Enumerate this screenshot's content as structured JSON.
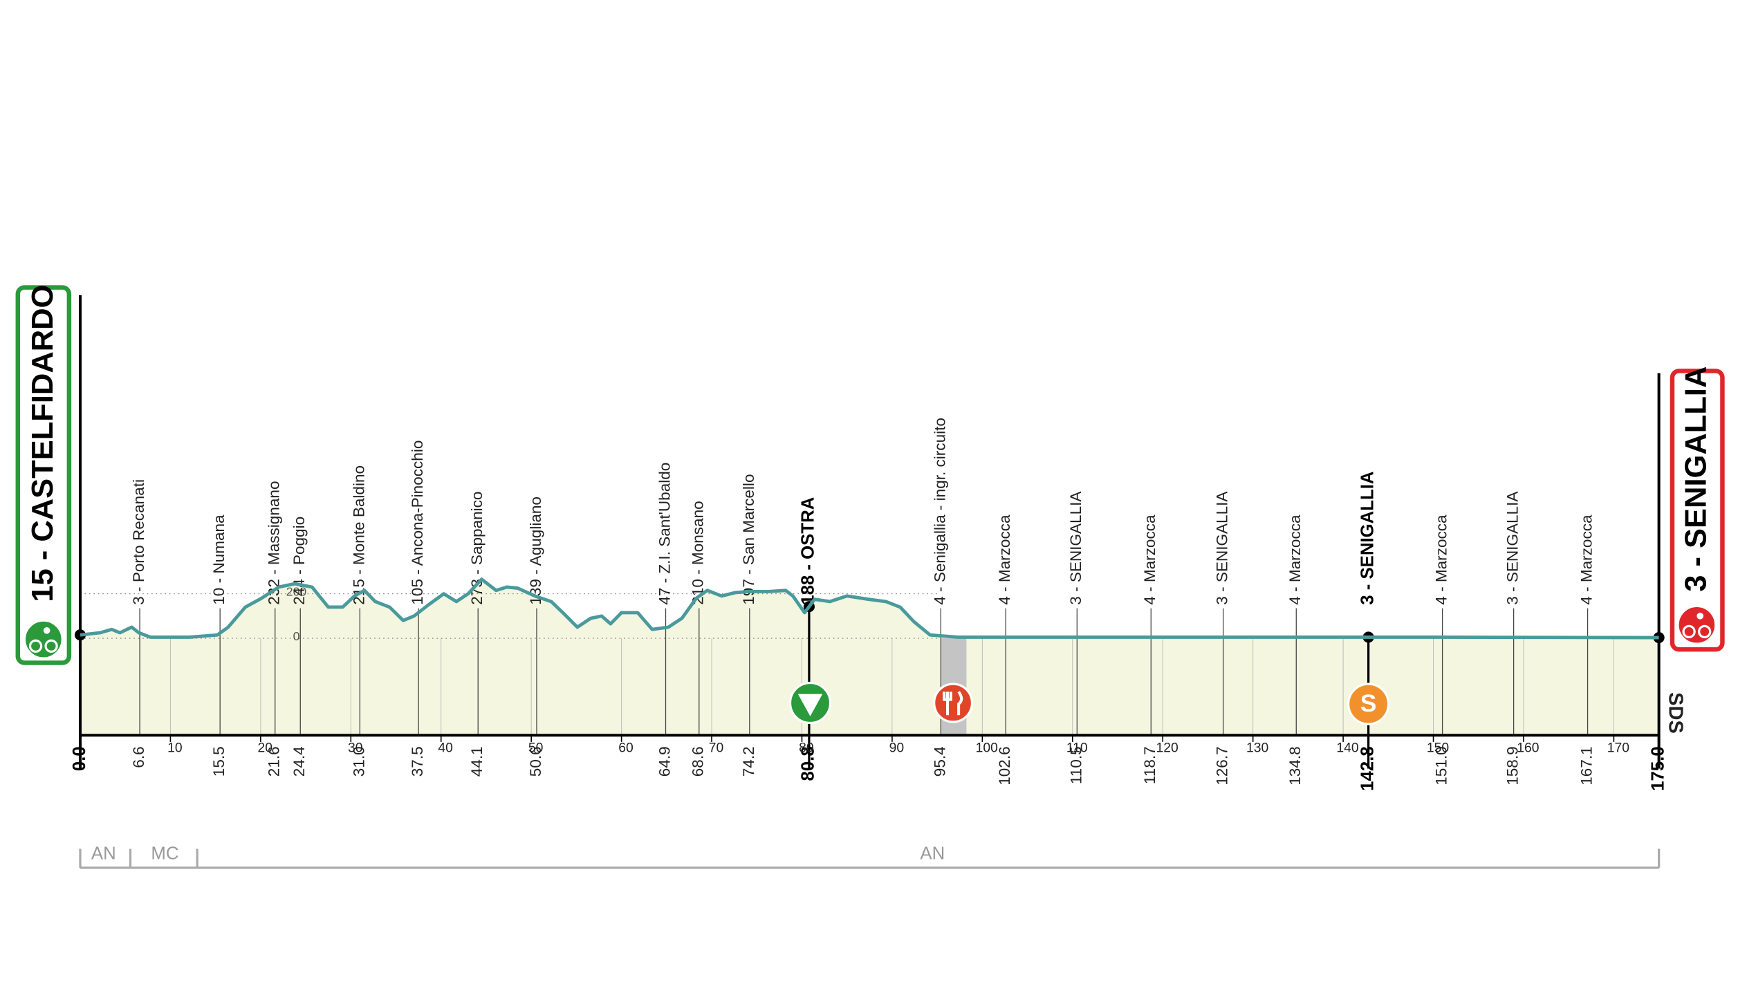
{
  "chart_data": {
    "type": "area",
    "start": "15 - CASTELFIDARDO",
    "finish": "3 - SENIGALLIA",
    "color": "#4a9a9c",
    "fill": "#f4f6e0",
    "x": [
      0,
      2.2,
      3.5,
      4.4,
      5.7,
      6.5,
      7.8,
      12.1,
      15.2,
      16.4,
      18.3,
      20.1,
      22,
      23.8,
      25.7,
      27.5,
      29.1,
      30.4,
      31.5,
      32.7,
      34.3,
      35.8,
      37,
      38.6,
      40.3,
      41.7,
      43,
      44.5,
      46.1,
      47.3,
      48.5,
      50.4,
      52.2,
      53.5,
      55.1,
      56.6,
      57.8,
      58.8,
      60,
      61.8,
      63.4,
      65.2,
      66.7,
      68.3,
      69.5,
      71.1,
      72.6,
      74.1,
      76.3,
      78.2,
      79,
      80.3,
      81.4,
      83.1,
      85,
      87.4,
      89.3,
      90.9,
      92.4,
      94.2,
      97.3,
      114.6,
      130,
      150,
      175
    ],
    "values": [
      15,
      25,
      40,
      25,
      50,
      25,
      5,
      5,
      15,
      50,
      140,
      180,
      230,
      245,
      230,
      140,
      140,
      190,
      215,
      165,
      140,
      80,
      100,
      150,
      200,
      165,
      200,
      265,
      215,
      230,
      225,
      190,
      165,
      115,
      50,
      90,
      100,
      65,
      115,
      115,
      40,
      50,
      90,
      180,
      215,
      190,
      205,
      210,
      210,
      215,
      190,
      115,
      175,
      165,
      190,
      175,
      165,
      140,
      75,
      15,
      5,
      5,
      5,
      5,
      3
    ],
    "xlim": [
      0,
      175
    ],
    "ylim": [
      -435,
      1540
    ],
    "xticks": [
      10,
      20,
      30,
      40,
      50,
      60,
      70,
      80,
      90,
      100,
      110,
      120,
      130,
      140,
      150,
      160,
      170
    ],
    "yticks": [
      0,
      200
    ],
    "waypoints": [
      {
        "km": {
          "value": 0,
          "label": "0.0"
        },
        "major": true
      },
      {
        "km": 6.6,
        "name": "3 - Porto Recanati"
      },
      {
        "km": 15.5,
        "name": "10 - Numana"
      },
      {
        "km": 21.6,
        "name": "232 - Massignano"
      },
      {
        "km": 24.4,
        "name": "244 - Poggio"
      },
      {
        "km": {
          "value": 31,
          "label": "31.0"
        },
        "name": "215 - Monte Baldino"
      },
      {
        "km": 37.5,
        "name": "105 - Ancona-Pinocchio"
      },
      {
        "km": 44.1,
        "name": "273 - Sappanico"
      },
      {
        "km": 50.6,
        "name": "139 - Agugliano"
      },
      {
        "km": 64.9,
        "name": "47 - Z.I. Sant'Ubaldo"
      },
      {
        "km": 68.6,
        "name": "210 - Monsano"
      },
      {
        "km": 74.2,
        "name": "197 - San Marcello"
      },
      {
        "km": 80.8,
        "name": "188 - OSTRA",
        "major": true,
        "icon": "triangle"
      },
      {
        "km": 95.4,
        "name": "4 - Senigallia - ingr. circuito",
        "icon": "feed"
      },
      {
        "km": 102.6,
        "name": "4 - Marzocca"
      },
      {
        "km": 110.5,
        "name": "3 - SENIGALLIA"
      },
      {
        "km": 118.7,
        "name": "4 - Marzocca"
      },
      {
        "km": 126.7,
        "name": "3 - SENIGALLIA"
      },
      {
        "km": 134.8,
        "name": "4 - Marzocca"
      },
      {
        "km": 142.8,
        "name": "3 - SENIGALLIA",
        "major": true,
        "icon": "sprint",
        "icon_text": "S"
      },
      {
        "km": {
          "value": 151,
          "label": "151.0"
        },
        "name": "4 - Marzocca"
      },
      {
        "km": 158.9,
        "name": "3 - SENIGALLIA"
      },
      {
        "km": 167.1,
        "name": "4 - Marzocca"
      },
      {
        "km": {
          "value": 175,
          "label": "175.0"
        },
        "major": true
      }
    ],
    "regions": [
      "AN",
      "MC",
      "AN"
    ],
    "logo": "SDS"
  }
}
